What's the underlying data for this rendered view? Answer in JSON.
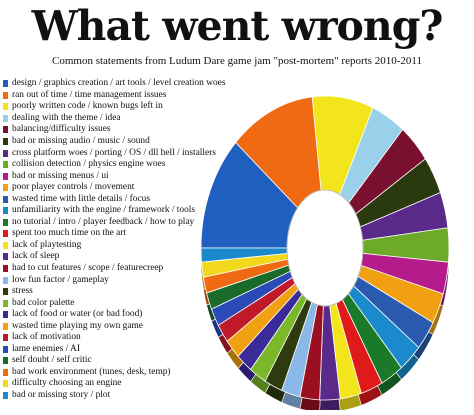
{
  "chart_data": {
    "type": "pie",
    "title": "What went wrong?",
    "subtitle": "Common statements from Ludum Dare game jam \"post-mortem\" reports 2010-2011",
    "legend_position": "left",
    "categories": [
      {
        "label": "design / graphics creation / art tools / level creation woes",
        "value": 11.5,
        "color": "#1f5fbf"
      },
      {
        "label": "ran out of time / time management issues",
        "value": 10.5,
        "color": "#f06a14"
      },
      {
        "label": "poorly written code / known bugs left in",
        "value": 7.5,
        "color": "#f2e51c"
      },
      {
        "label": "dealing with the theme / idea",
        "value": 4.2,
        "color": "#9bd0ea"
      },
      {
        "label": "balancing/difficulty issues",
        "value": 4.0,
        "color": "#7a1030"
      },
      {
        "label": "bad or missing audio / music / sound",
        "value": 3.8,
        "color": "#2a3a0e"
      },
      {
        "label": "cross platform woes / porting / OS / dll hell / installers",
        "value": 3.6,
        "color": "#5a2a8a"
      },
      {
        "label": "collision detection / physics engine woes",
        "value": 3.4,
        "color": "#6eaa2a"
      },
      {
        "label": "bad or missing menus / ui",
        "value": 3.2,
        "color": "#b31c8a"
      },
      {
        "label": "poor player controls / movement",
        "value": 3.1,
        "color": "#f0a010"
      },
      {
        "label": "wasted time with little details / focus",
        "value": 3.0,
        "color": "#2a5ab0"
      },
      {
        "label": "unfamiliarity with the engine / framework / tools",
        "value": 2.9,
        "color": "#1a8acc"
      },
      {
        "label": "no tutorial / intro / player feedback / how to play",
        "value": 2.8,
        "color": "#1a7a2a"
      },
      {
        "label": "spent too much time on the art",
        "value": 2.7,
        "color": "#e01a1a"
      },
      {
        "label": "lack of playtesting",
        "value": 2.6,
        "color": "#f2e51c"
      },
      {
        "label": "lack of sleep",
        "value": 2.5,
        "color": "#5a2a8a"
      },
      {
        "label": "had to cut features / scope / featurecreep",
        "value": 2.4,
        "color": "#9a1020"
      },
      {
        "label": "low fun factor / gameplay",
        "value": 2.3,
        "color": "#8ab8e8"
      },
      {
        "label": "stress",
        "value": 2.2,
        "color": "#2e3a10"
      },
      {
        "label": "bad color palette",
        "value": 2.1,
        "color": "#7ab82a"
      },
      {
        "label": "lack of food or water (or bad food)",
        "value": 2.0,
        "color": "#3a2a9a"
      },
      {
        "label": "wasted time playing my own game",
        "value": 2.0,
        "color": "#f0a010"
      },
      {
        "label": "lack of motivation",
        "value": 1.9,
        "color": "#c01a2a"
      },
      {
        "label": "lame enemies / AI",
        "value": 1.8,
        "color": "#2a4ab8"
      },
      {
        "label": "self doubt / self critic",
        "value": 1.7,
        "color": "#1a6a2a"
      },
      {
        "label": "bad work environment (tunes, desk, temp)",
        "value": 1.6,
        "color": "#f06a14"
      },
      {
        "label": "difficulty choosing an engine",
        "value": 1.5,
        "color": "#f2d81c"
      },
      {
        "label": "bad or missing story / plot",
        "value": 1.4,
        "color": "#1a8acc"
      }
    ]
  }
}
